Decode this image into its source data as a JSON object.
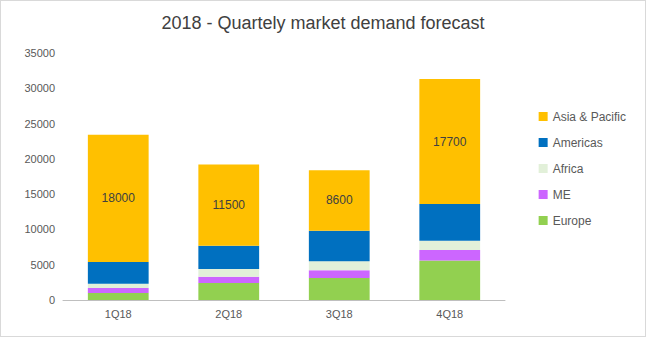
{
  "chart_data": {
    "type": "bar",
    "title": "2018 - Quartely market demand forecast",
    "categories": [
      "1Q18",
      "2Q18",
      "3Q18",
      "4Q18"
    ],
    "stacked": true,
    "series": [
      {
        "name": "Europe",
        "color": "#92D050",
        "values": [
          1000,
          2400,
          3100,
          5600
        ]
      },
      {
        "name": "ME",
        "color": "#CC66FF",
        "values": [
          700,
          900,
          1100,
          1500
        ]
      },
      {
        "name": "Africa",
        "color": "#E2F0D9",
        "values": [
          600,
          1100,
          1300,
          1300
        ]
      },
      {
        "name": "Americas",
        "color": "#0070C0",
        "values": [
          3100,
          3300,
          4300,
          5200
        ]
      },
      {
        "name": "Asia & Pacific",
        "color": "#FFC000",
        "values": [
          18000,
          11500,
          8600,
          17700
        ],
        "data_labels": true
      }
    ],
    "ylim": [
      0,
      35000
    ],
    "yticks": [
      0,
      5000,
      10000,
      15000,
      20000,
      25000,
      30000,
      35000
    ],
    "grid": false,
    "legend": "right"
  }
}
